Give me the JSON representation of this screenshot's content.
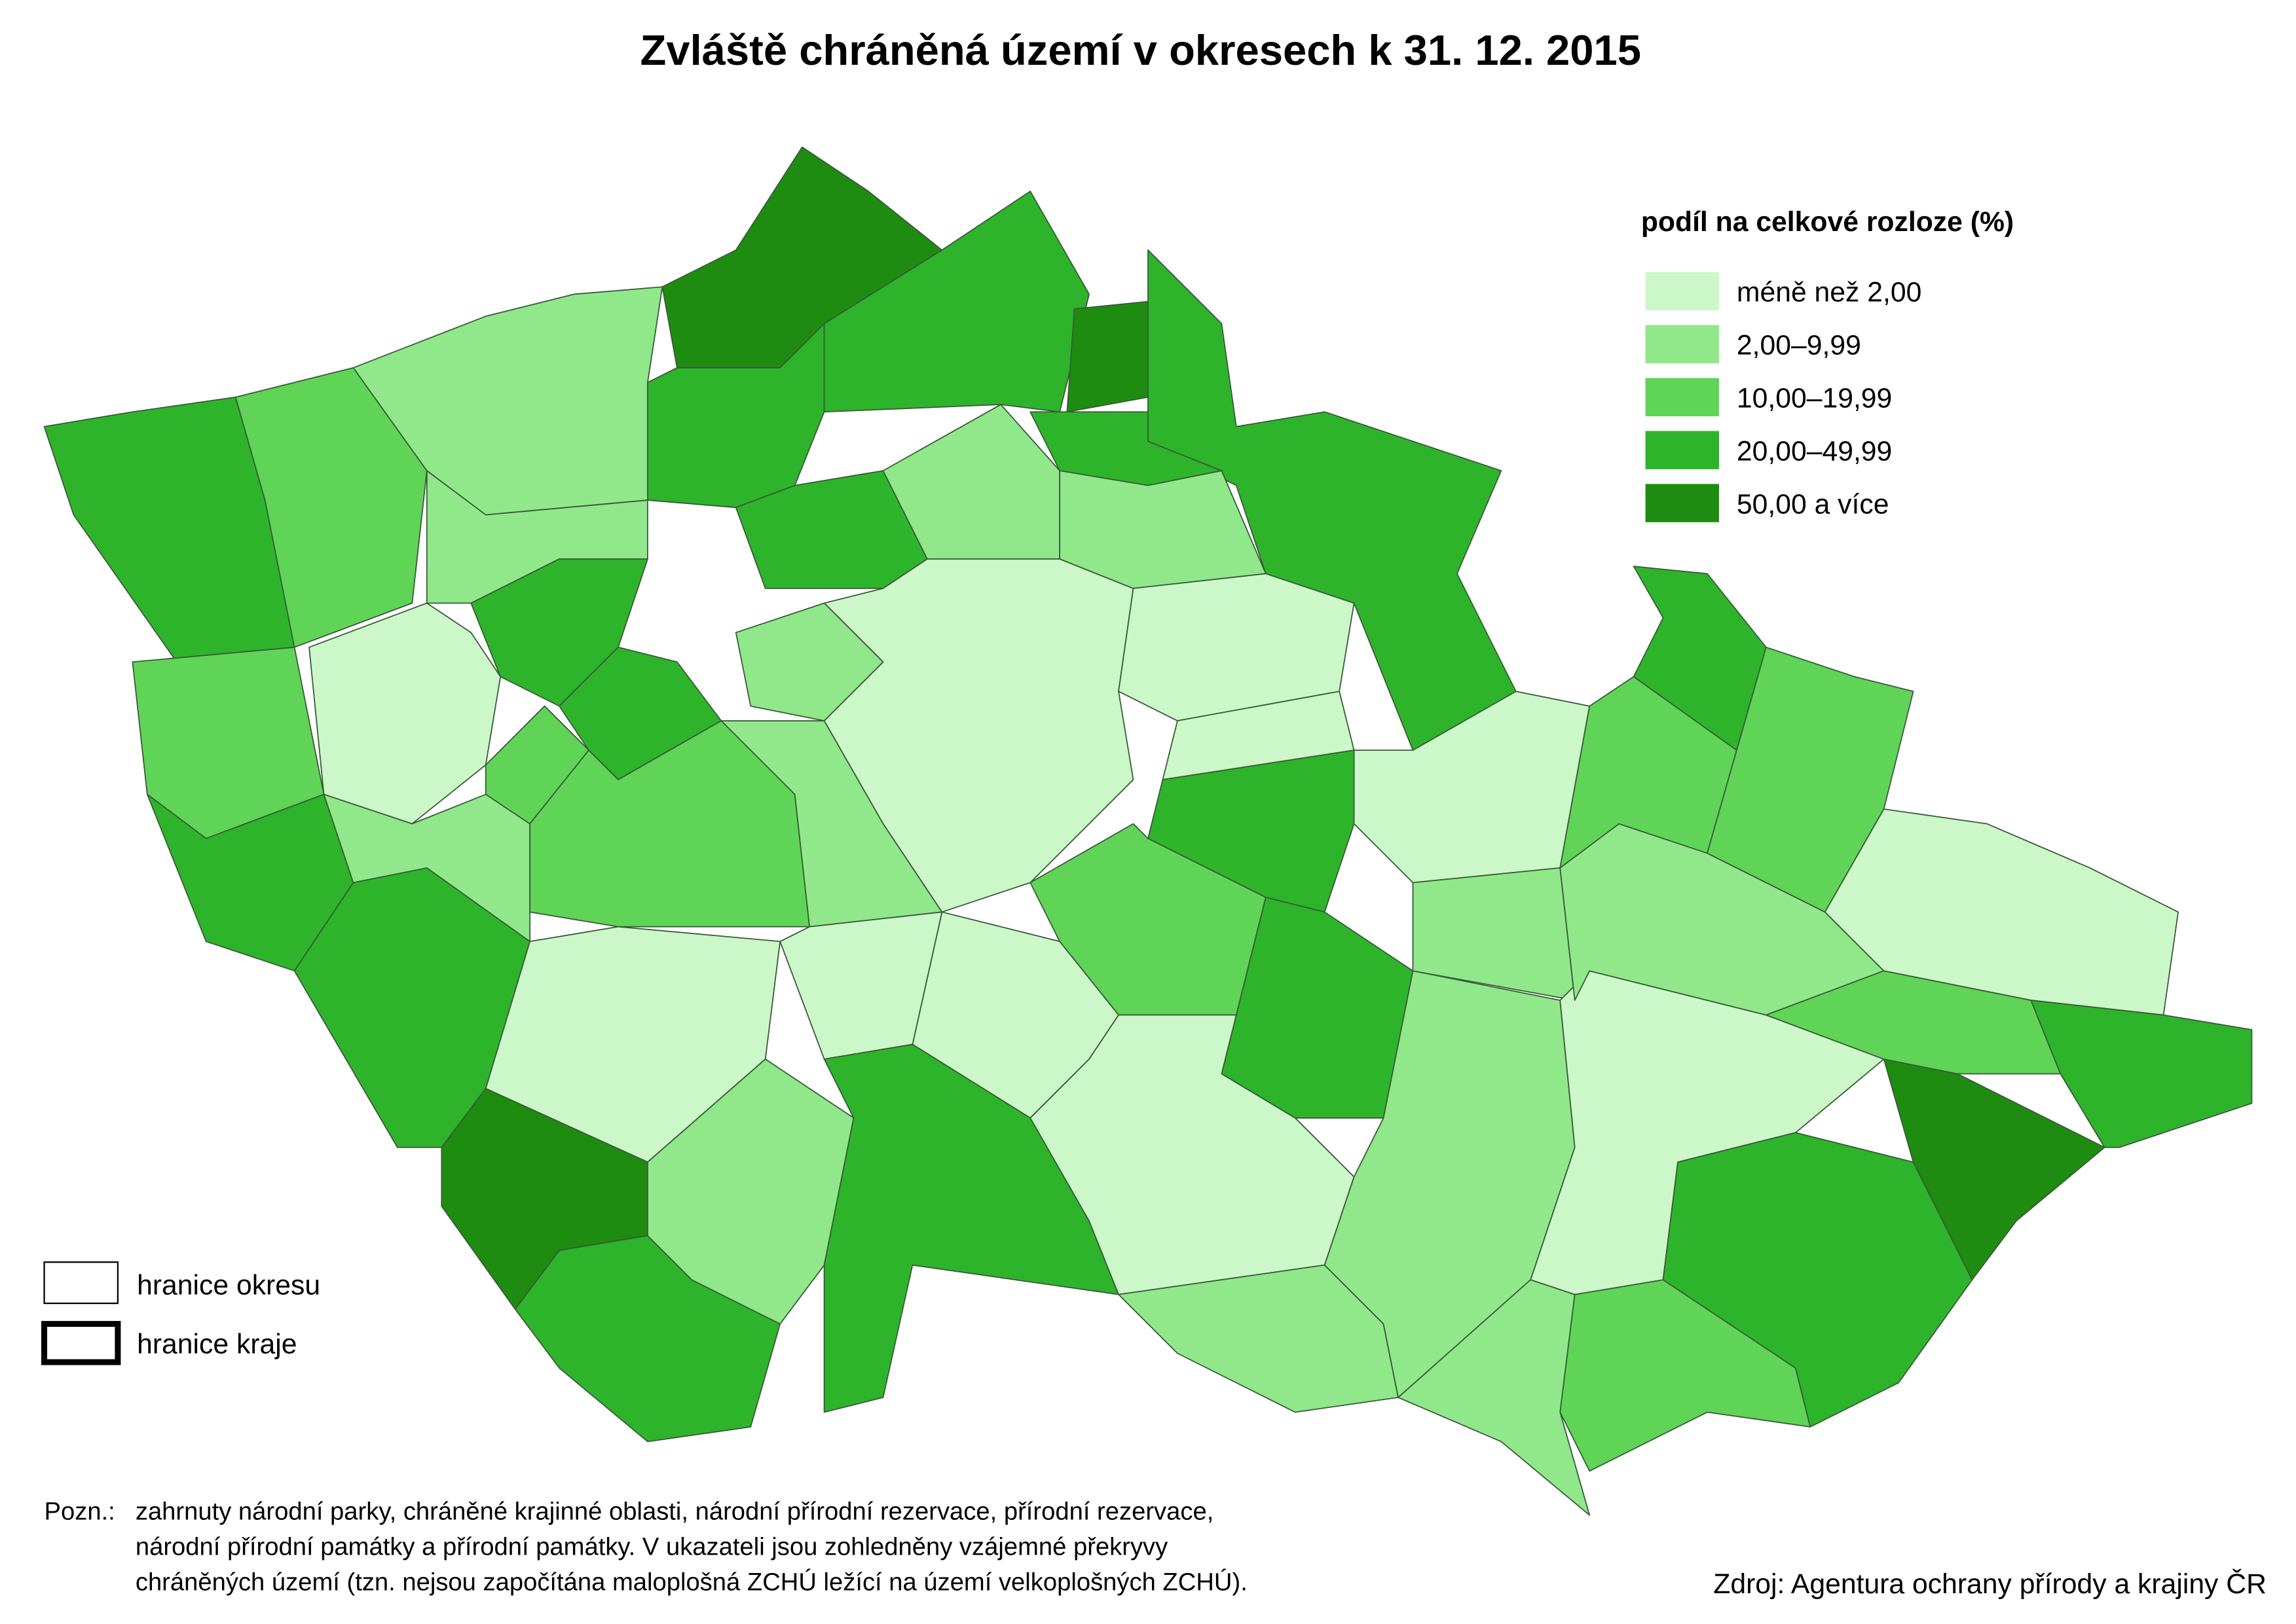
{
  "title": "Zvláště chráněná území v okresech k 31. 12. 2015",
  "legend": {
    "title": "podíl na celkové rozloze (%)",
    "items": [
      {
        "label": "méně než 2,00",
        "color": "#ccf7c8"
      },
      {
        "label": "2,00–9,99",
        "color": "#90e88a"
      },
      {
        "label": "10,00–19,99",
        "color": "#5fd457"
      },
      {
        "label": "20,00–49,99",
        "color": "#2db42a"
      },
      {
        "label": "50,00 a více",
        "color": "#1e8c10"
      }
    ]
  },
  "boundaries": [
    {
      "label": "hranice okresu"
    },
    {
      "label": "hranice kraje"
    }
  ],
  "note": {
    "prefix": "Pozn.:",
    "lines": [
      "zahrnuty národní parky, chráněné krajinné oblasti, národní přírodní rezervace, přírodní rezervace,",
      "národní přírodní památky a přírodní památky. V ukazateli jsou zohledněny vzájemné překryvy",
      "chráněných území (tzn. nejsou započítána maloplošná ZCHÚ ležící na území velkoplošných ZCHÚ)."
    ]
  },
  "source": "Zdroj: Agentura ochrany přírody a krajiny ČR"
}
